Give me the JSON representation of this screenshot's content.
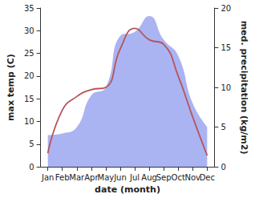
{
  "chart_data": {
    "type": "line",
    "x_label": "date (month)",
    "y_label": "max temp (C)",
    "y2_label": "med. precipitation (kg/m2)",
    "categories": [
      "Jan",
      "Feb",
      "Mar",
      "Apr",
      "May",
      "Jun",
      "Jul",
      "Aug",
      "Sep",
      "Oct",
      "Nov",
      "Dec"
    ],
    "series": [
      {
        "type": "area",
        "axis": "y2",
        "color": "#aab4f2",
        "values": [
          4,
          4.2,
          5,
          9,
          10,
          16.5,
          17,
          19,
          16,
          14,
          8,
          5
        ]
      },
      {
        "type": "line",
        "color": "#b8545a",
        "values": [
          3,
          12.5,
          15.5,
          17,
          17.5,
          26,
          30.5,
          28,
          27,
          20,
          11,
          2.5
        ]
      }
    ],
    "ylim": [
      0,
      35
    ],
    "yticks": [
      0,
      5,
      10,
      15,
      20,
      25,
      30,
      35
    ],
    "y2lim": [
      0,
      20
    ],
    "y2ticks": [
      0,
      5,
      10,
      15,
      20
    ],
    "grid": false
  }
}
